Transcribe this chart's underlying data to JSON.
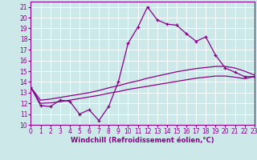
{
  "xlabel": "Windchill (Refroidissement éolien,°C)",
  "bg_color": "#cce8e8",
  "line_color": "#880088",
  "x_values": [
    0,
    1,
    2,
    3,
    4,
    5,
    6,
    7,
    8,
    9,
    10,
    11,
    12,
    13,
    14,
    15,
    16,
    17,
    18,
    19,
    20,
    21,
    22,
    23
  ],
  "jagged_y": [
    13.5,
    11.8,
    11.7,
    12.3,
    12.2,
    11.0,
    11.4,
    10.4,
    11.7,
    14.0,
    17.6,
    19.1,
    21.0,
    19.8,
    19.4,
    19.3,
    18.5,
    17.8,
    18.2,
    16.5,
    15.3,
    14.9,
    14.5,
    14.5
  ],
  "smooth1_y": [
    13.5,
    12.3,
    12.4,
    12.55,
    12.7,
    12.85,
    13.0,
    13.2,
    13.45,
    13.65,
    13.9,
    14.1,
    14.35,
    14.55,
    14.75,
    14.95,
    15.1,
    15.25,
    15.35,
    15.45,
    15.45,
    15.3,
    15.0,
    14.65
  ],
  "smooth2_y": [
    13.5,
    12.0,
    12.05,
    12.15,
    12.3,
    12.45,
    12.6,
    12.75,
    12.95,
    13.1,
    13.3,
    13.45,
    13.6,
    13.75,
    13.9,
    14.05,
    14.2,
    14.35,
    14.45,
    14.55,
    14.55,
    14.45,
    14.3,
    14.5
  ],
  "xlim": [
    0,
    23
  ],
  "ylim": [
    10,
    21.5
  ],
  "yticks": [
    10,
    11,
    12,
    13,
    14,
    15,
    16,
    17,
    18,
    19,
    20,
    21
  ],
  "xticks": [
    0,
    1,
    2,
    3,
    4,
    5,
    6,
    7,
    8,
    9,
    10,
    11,
    12,
    13,
    14,
    15,
    16,
    17,
    18,
    19,
    20,
    21,
    22,
    23
  ],
  "tick_fontsize": 5.5,
  "label_fontsize": 6.0,
  "grid_color": "#ffffff",
  "spine_color": "#880088"
}
